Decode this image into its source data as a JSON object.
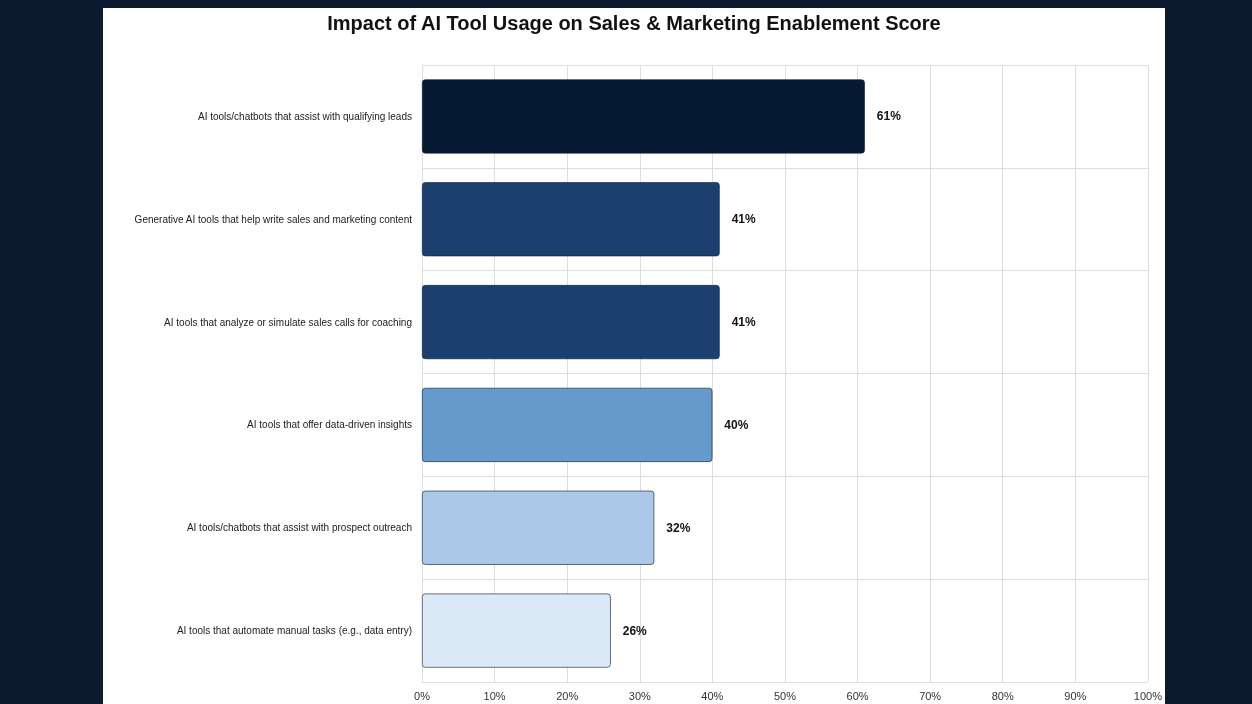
{
  "chart_data": {
    "type": "bar",
    "orientation": "horizontal",
    "title": "Impact of AI Tool Usage on Sales & Marketing Enablement Score",
    "categories": [
      "AI tools/chatbots that assist with qualifying leads",
      "Generative AI tools that help write sales and marketing content",
      "AI tools that analyze or simulate sales calls for coaching",
      "AI tools that offer data-driven insights",
      "AI tools/chatbots that assist with prospect outreach",
      "AI tools that automate manual tasks (e.g., data entry)"
    ],
    "values": [
      61,
      41,
      41,
      40,
      32,
      26
    ],
    "colors": [
      "#061a33",
      "#1b3f6e",
      "#1b3f6e",
      "#6699cc",
      "#aac8e8",
      "#dce9f6"
    ],
    "value_labels": [
      "61%",
      "41%",
      "41%",
      "40%",
      "32%",
      "26%"
    ],
    "xlim": [
      0,
      100
    ],
    "xticks": [
      {
        "value": 0,
        "label": "0%"
      },
      {
        "value": 10,
        "label": "10%"
      },
      {
        "value": 20,
        "label": "20%"
      },
      {
        "value": 30,
        "label": "30%"
      },
      {
        "value": 40,
        "label": "40%"
      },
      {
        "value": 50,
        "label": "50%"
      },
      {
        "value": 60,
        "label": "60%"
      },
      {
        "value": 70,
        "label": "70%"
      },
      {
        "value": 80,
        "label": "80%"
      },
      {
        "value": 90,
        "label": "90%"
      },
      {
        "value": 100,
        "label": "100%"
      }
    ],
    "grid": true
  }
}
